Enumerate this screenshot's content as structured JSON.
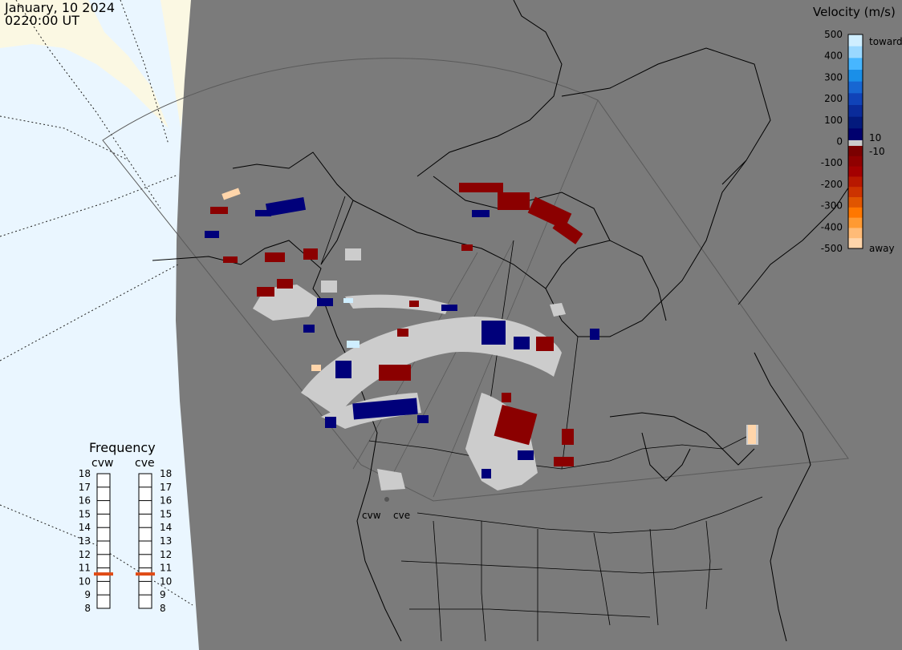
{
  "header": {
    "date": "January, 10 2024",
    "time": "0220:00 UT"
  },
  "velocity_scale": {
    "title": "Velocity (m/s)",
    "ticks": [
      "500",
      "400",
      "300",
      "200",
      "100",
      "0",
      "-100",
      "-200",
      "-300",
      "-400",
      "-500"
    ],
    "toward_label": "toward",
    "away_label": "away",
    "plus_label": "10",
    "minus_label": "-10",
    "colors_toward": [
      "#cfeeff",
      "#9ad8ff",
      "#47b6ff",
      "#1a8fe8",
      "#1766d2",
      "#1043b8",
      "#0a2b9a",
      "#031a7d",
      "#00006e"
    ],
    "colors_away": [
      "#7b0000",
      "#900000",
      "#a40000",
      "#b81800",
      "#cc3300",
      "#e05500",
      "#ff7700",
      "#ff9a33",
      "#ffbb77",
      "#ffd5aa"
    ]
  },
  "frequency": {
    "title": "Frequency",
    "radars": [
      {
        "name": "cvw",
        "freq_mhz": 11
      },
      {
        "name": "cve",
        "freq_mhz": 11
      }
    ],
    "ticks": [
      "18",
      "17",
      "16",
      "15",
      "14",
      "13",
      "12",
      "11",
      "10",
      "9",
      "8"
    ]
  },
  "map": {
    "radar_sites": [
      "cvw",
      "cve"
    ],
    "colors": {
      "ground": "#7a7a7a",
      "ocean": "#eaf6ff",
      "night_ice": "#fbf8e3",
      "coast": "#000000",
      "gs_scatter": "#cccccc"
    }
  }
}
